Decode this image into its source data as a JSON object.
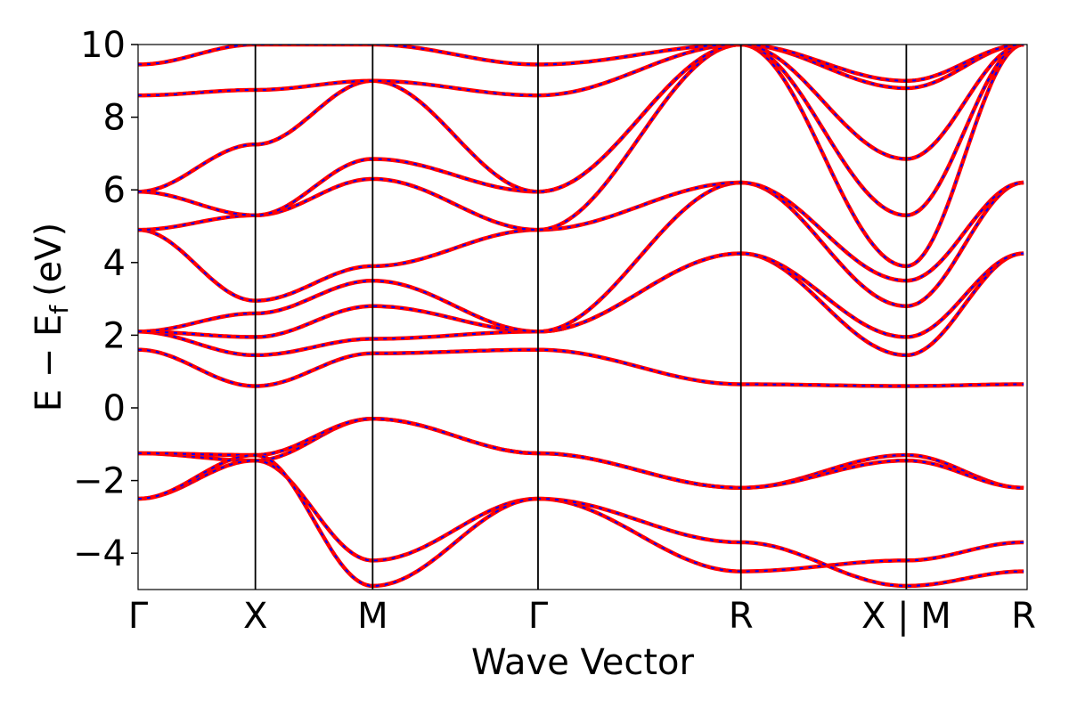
{
  "chart_data": {
    "type": "line",
    "xlabel": "Wave Vector",
    "ylabel_main": "E − E",
    "ylabel_sub": "f",
    "ylabel_unit": "(eV)",
    "ylim": [
      -5,
      10
    ],
    "yticks": [
      {
        "v": -4,
        "label": "−4"
      },
      {
        "v": -2,
        "label": "−2"
      },
      {
        "v": 0,
        "label": "0"
      },
      {
        "v": 2,
        "label": "2"
      },
      {
        "v": 4,
        "label": "4"
      },
      {
        "v": 6,
        "label": "6"
      },
      {
        "v": 8,
        "label": "8"
      },
      {
        "v": 10,
        "label": "10"
      }
    ],
    "xlim": [
      0,
      7.58
    ],
    "kpoints": [
      {
        "x": 0,
        "label": "Γ"
      },
      {
        "x": 1.0,
        "label": "X"
      },
      {
        "x": 2.0,
        "label": "M"
      },
      {
        "x": 3.41,
        "label": "Γ"
      },
      {
        "x": 5.14,
        "label": "R"
      },
      {
        "x": 6.55,
        "label": "X | M"
      },
      {
        "x": 7.55,
        "label": "R"
      }
    ],
    "series_colors": {
      "a": "#ff0000",
      "b": "#0000ff"
    },
    "bands": [
      [
        [
          0,
          -1.25
        ],
        [
          1.0,
          -1.45
        ],
        [
          2.0,
          -0.3
        ],
        [
          3.41,
          -1.25
        ],
        [
          5.14,
          -2.2
        ],
        [
          6.55,
          -1.3
        ],
        [
          7.55,
          -2.2
        ]
      ],
      [
        [
          0,
          -1.25
        ],
        [
          1.0,
          -1.3
        ],
        [
          2.0,
          -0.3
        ],
        [
          3.41,
          -1.25
        ],
        [
          5.14,
          -2.2
        ],
        [
          6.55,
          -1.45
        ],
        [
          7.55,
          -2.2
        ]
      ],
      [
        [
          0,
          -2.5
        ],
        [
          1.0,
          -1.45
        ],
        [
          2.0,
          -4.2
        ],
        [
          3.41,
          -2.5
        ],
        [
          5.14,
          -4.5
        ],
        [
          6.55,
          -4.2
        ],
        [
          7.55,
          -3.7
        ]
      ],
      [
        [
          0,
          -2.5
        ],
        [
          1.0,
          -1.3
        ],
        [
          2.0,
          -4.9
        ],
        [
          3.41,
          -2.5
        ],
        [
          5.14,
          -3.7
        ],
        [
          6.55,
          -4.9
        ],
        [
          7.55,
          -4.5
        ]
      ],
      [
        [
          0,
          1.6
        ],
        [
          1.0,
          0.6
        ],
        [
          2.0,
          1.5
        ],
        [
          3.41,
          1.6
        ],
        [
          5.14,
          0.65
        ],
        [
          6.55,
          0.6
        ],
        [
          7.55,
          0.65
        ]
      ],
      [
        [
          0,
          2.1
        ],
        [
          1.0,
          1.45
        ],
        [
          2.0,
          1.9
        ],
        [
          3.41,
          2.1
        ],
        [
          5.14,
          4.25
        ],
        [
          6.55,
          1.45
        ],
        [
          7.55,
          4.25
        ]
      ],
      [
        [
          0,
          2.1
        ],
        [
          1.0,
          1.95
        ],
        [
          2.0,
          2.8
        ],
        [
          3.41,
          2.1
        ],
        [
          5.14,
          4.25
        ],
        [
          6.55,
          1.95
        ],
        [
          7.55,
          4.25
        ]
      ],
      [
        [
          0,
          2.1
        ],
        [
          1.0,
          2.6
        ],
        [
          2.0,
          3.5
        ],
        [
          3.41,
          2.1
        ],
        [
          5.14,
          6.2
        ],
        [
          6.55,
          2.8
        ],
        [
          7.55,
          6.2
        ]
      ],
      [
        [
          0,
          4.9
        ],
        [
          1.0,
          2.95
        ],
        [
          2.0,
          3.9
        ],
        [
          3.41,
          4.9
        ],
        [
          5.14,
          6.2
        ],
        [
          6.55,
          3.5
        ],
        [
          7.55,
          6.2
        ]
      ],
      [
        [
          0,
          4.9
        ],
        [
          1.0,
          5.3
        ],
        [
          2.0,
          6.3
        ],
        [
          3.41,
          4.9
        ],
        [
          5.14,
          10.0
        ],
        [
          6.55,
          3.9
        ],
        [
          7.55,
          10.0
        ]
      ],
      [
        [
          0,
          5.95
        ],
        [
          1.0,
          5.3
        ],
        [
          2.0,
          6.85
        ],
        [
          3.41,
          5.95
        ],
        [
          5.14,
          10.0
        ],
        [
          6.55,
          5.3
        ],
        [
          7.55,
          10.0
        ]
      ],
      [
        [
          0,
          5.95
        ],
        [
          1.0,
          7.25
        ],
        [
          2.0,
          9.0
        ],
        [
          3.41,
          5.95
        ],
        [
          5.14,
          10.0
        ],
        [
          6.55,
          6.85
        ],
        [
          7.55,
          10.0
        ]
      ],
      [
        [
          0,
          8.6
        ],
        [
          1.0,
          8.75
        ],
        [
          2.0,
          9.0
        ],
        [
          3.41,
          8.6
        ],
        [
          5.14,
          10.0
        ],
        [
          6.55,
          8.8
        ],
        [
          7.55,
          10.0
        ]
      ],
      [
        [
          0,
          9.45
        ],
        [
          1.0,
          10.0
        ],
        [
          2.0,
          10.0
        ],
        [
          3.41,
          9.45
        ],
        [
          5.14,
          10.0
        ],
        [
          6.55,
          9.0
        ],
        [
          7.55,
          10.0
        ]
      ]
    ]
  }
}
